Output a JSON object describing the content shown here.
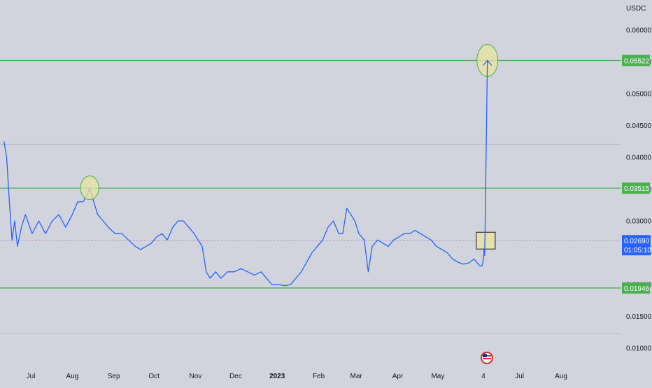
{
  "currency_label": "USDC",
  "price_tag": {
    "value": "0.02690",
    "countdown": "01:05:10"
  },
  "level_tags": [
    "0.05522",
    "0.03515",
    "0.01946"
  ],
  "flag_icon": "us-flag-icon",
  "colors": {
    "background": "#d1d4dc",
    "line": "#2962ff",
    "level": "#4caf50",
    "price_tag": "#2962ff",
    "highlight": "#e8e4a0",
    "box": "#e8e4a0"
  },
  "chart_data": {
    "type": "line",
    "title": "",
    "xlabel": "",
    "ylabel": "",
    "ylim": [
      0.0065,
      0.0615
    ],
    "x_tick_labels": [
      "Jul",
      "Aug",
      "Sep",
      "Oct",
      "Nov",
      "Dec",
      "2023",
      "Feb",
      "Mar",
      "Apr",
      "May",
      "4",
      "Jul",
      "Aug"
    ],
    "y_tick_labels": [
      "0.06000",
      "0.05500",
      "0.05000",
      "0.04500",
      "0.04000",
      "0.03500",
      "0.03000",
      "0.02500",
      "0.02000",
      "0.01500",
      "0.01000"
    ],
    "y_ticks": [
      0.06,
      0.055,
      0.05,
      0.045,
      0.04,
      0.035,
      0.03,
      0.025,
      0.02,
      0.015,
      0.01
    ],
    "x_ticks": [
      "2022-07-01",
      "2022-08-01",
      "2022-09-01",
      "2022-10-01",
      "2022-11-01",
      "2022-12-01",
      "2023-01-01",
      "2023-02-01",
      "2023-03-01",
      "2023-04-01",
      "2023-05-01",
      "2023-06-04",
      "2023-07-01",
      "2023-08-01"
    ],
    "horizontal_levels": [
      0.05522,
      0.03515,
      0.01946
    ],
    "last_price": 0.0269,
    "series": [
      {
        "values": [
          [
            "2022-06-11",
            0.0425
          ],
          [
            "2022-06-13",
            0.04
          ],
          [
            "2022-06-15",
            0.033
          ],
          [
            "2022-06-17",
            0.027
          ],
          [
            "2022-06-19",
            0.03
          ],
          [
            "2022-06-21",
            0.026
          ],
          [
            "2022-06-24",
            0.029
          ],
          [
            "2022-06-27",
            0.031
          ],
          [
            "2022-07-02",
            0.028
          ],
          [
            "2022-07-07",
            0.03
          ],
          [
            "2022-07-12",
            0.028
          ],
          [
            "2022-07-17",
            0.03
          ],
          [
            "2022-07-22",
            0.031
          ],
          [
            "2022-07-27",
            0.029
          ],
          [
            "2022-08-01",
            0.031
          ],
          [
            "2022-08-05",
            0.033
          ],
          [
            "2022-08-09",
            0.033
          ],
          [
            "2022-08-12",
            0.034
          ],
          [
            "2022-08-14",
            0.0352
          ],
          [
            "2022-08-17",
            0.033
          ],
          [
            "2022-08-20",
            0.031
          ],
          [
            "2022-08-24",
            0.03
          ],
          [
            "2022-08-28",
            0.029
          ],
          [
            "2022-09-02",
            0.028
          ],
          [
            "2022-09-07",
            0.028
          ],
          [
            "2022-09-12",
            0.027
          ],
          [
            "2022-09-17",
            0.026
          ],
          [
            "2022-09-21",
            0.0255
          ],
          [
            "2022-09-25",
            0.026
          ],
          [
            "2022-09-29",
            0.0265
          ],
          [
            "2022-10-03",
            0.0275
          ],
          [
            "2022-10-07",
            0.028
          ],
          [
            "2022-10-11",
            0.027
          ],
          [
            "2022-10-15",
            0.029
          ],
          [
            "2022-10-19",
            0.03
          ],
          [
            "2022-10-23",
            0.03
          ],
          [
            "2022-10-27",
            0.029
          ],
          [
            "2022-10-31",
            0.028
          ],
          [
            "2022-11-03",
            0.027
          ],
          [
            "2022-11-06",
            0.026
          ],
          [
            "2022-11-09",
            0.022
          ],
          [
            "2022-11-12",
            0.021
          ],
          [
            "2022-11-16",
            0.022
          ],
          [
            "2022-11-20",
            0.021
          ],
          [
            "2022-11-25",
            0.022
          ],
          [
            "2022-11-30",
            0.022
          ],
          [
            "2022-12-05",
            0.0225
          ],
          [
            "2022-12-10",
            0.022
          ],
          [
            "2022-12-15",
            0.0215
          ],
          [
            "2022-12-20",
            0.022
          ],
          [
            "2022-12-24",
            0.021
          ],
          [
            "2022-12-28",
            0.02
          ],
          [
            "2023-01-02",
            0.02
          ],
          [
            "2023-01-07",
            0.0198
          ],
          [
            "2023-01-11",
            0.02
          ],
          [
            "2023-01-15",
            0.021
          ],
          [
            "2023-01-19",
            0.022
          ],
          [
            "2023-01-23",
            0.0235
          ],
          [
            "2023-01-27",
            0.025
          ],
          [
            "2023-01-31",
            0.026
          ],
          [
            "2023-02-04",
            0.027
          ],
          [
            "2023-02-08",
            0.029
          ],
          [
            "2023-02-12",
            0.03
          ],
          [
            "2023-02-16",
            0.028
          ],
          [
            "2023-02-19",
            0.028
          ],
          [
            "2023-02-22",
            0.032
          ],
          [
            "2023-02-25",
            0.031
          ],
          [
            "2023-02-28",
            0.03
          ],
          [
            "2023-03-03",
            0.028
          ],
          [
            "2023-03-07",
            0.027
          ],
          [
            "2023-03-10",
            0.022
          ],
          [
            "2023-03-13",
            0.026
          ],
          [
            "2023-03-17",
            0.027
          ],
          [
            "2023-03-21",
            0.0265
          ],
          [
            "2023-03-25",
            0.026
          ],
          [
            "2023-03-29",
            0.027
          ],
          [
            "2023-04-02",
            0.0275
          ],
          [
            "2023-04-06",
            0.028
          ],
          [
            "2023-04-10",
            0.028
          ],
          [
            "2023-04-14",
            0.0285
          ],
          [
            "2023-04-18",
            0.028
          ],
          [
            "2023-04-22",
            0.0275
          ],
          [
            "2023-04-26",
            0.027
          ],
          [
            "2023-04-30",
            0.026
          ],
          [
            "2023-05-04",
            0.0255
          ],
          [
            "2023-05-08",
            0.025
          ],
          [
            "2023-05-12",
            0.024
          ],
          [
            "2023-05-16",
            0.0235
          ],
          [
            "2023-05-20",
            0.0232
          ],
          [
            "2023-05-24",
            0.0234
          ],
          [
            "2023-05-28",
            0.024
          ],
          [
            "2023-06-01",
            0.023
          ],
          [
            "2023-06-03",
            0.0229
          ],
          [
            "2023-06-04",
            0.024
          ],
          [
            "2023-06-05",
            0.0269
          ]
        ]
      }
    ],
    "projection": [
      [
        "2023-06-05",
        0.0245
      ],
      [
        "2023-06-07",
        0.05522
      ]
    ]
  }
}
